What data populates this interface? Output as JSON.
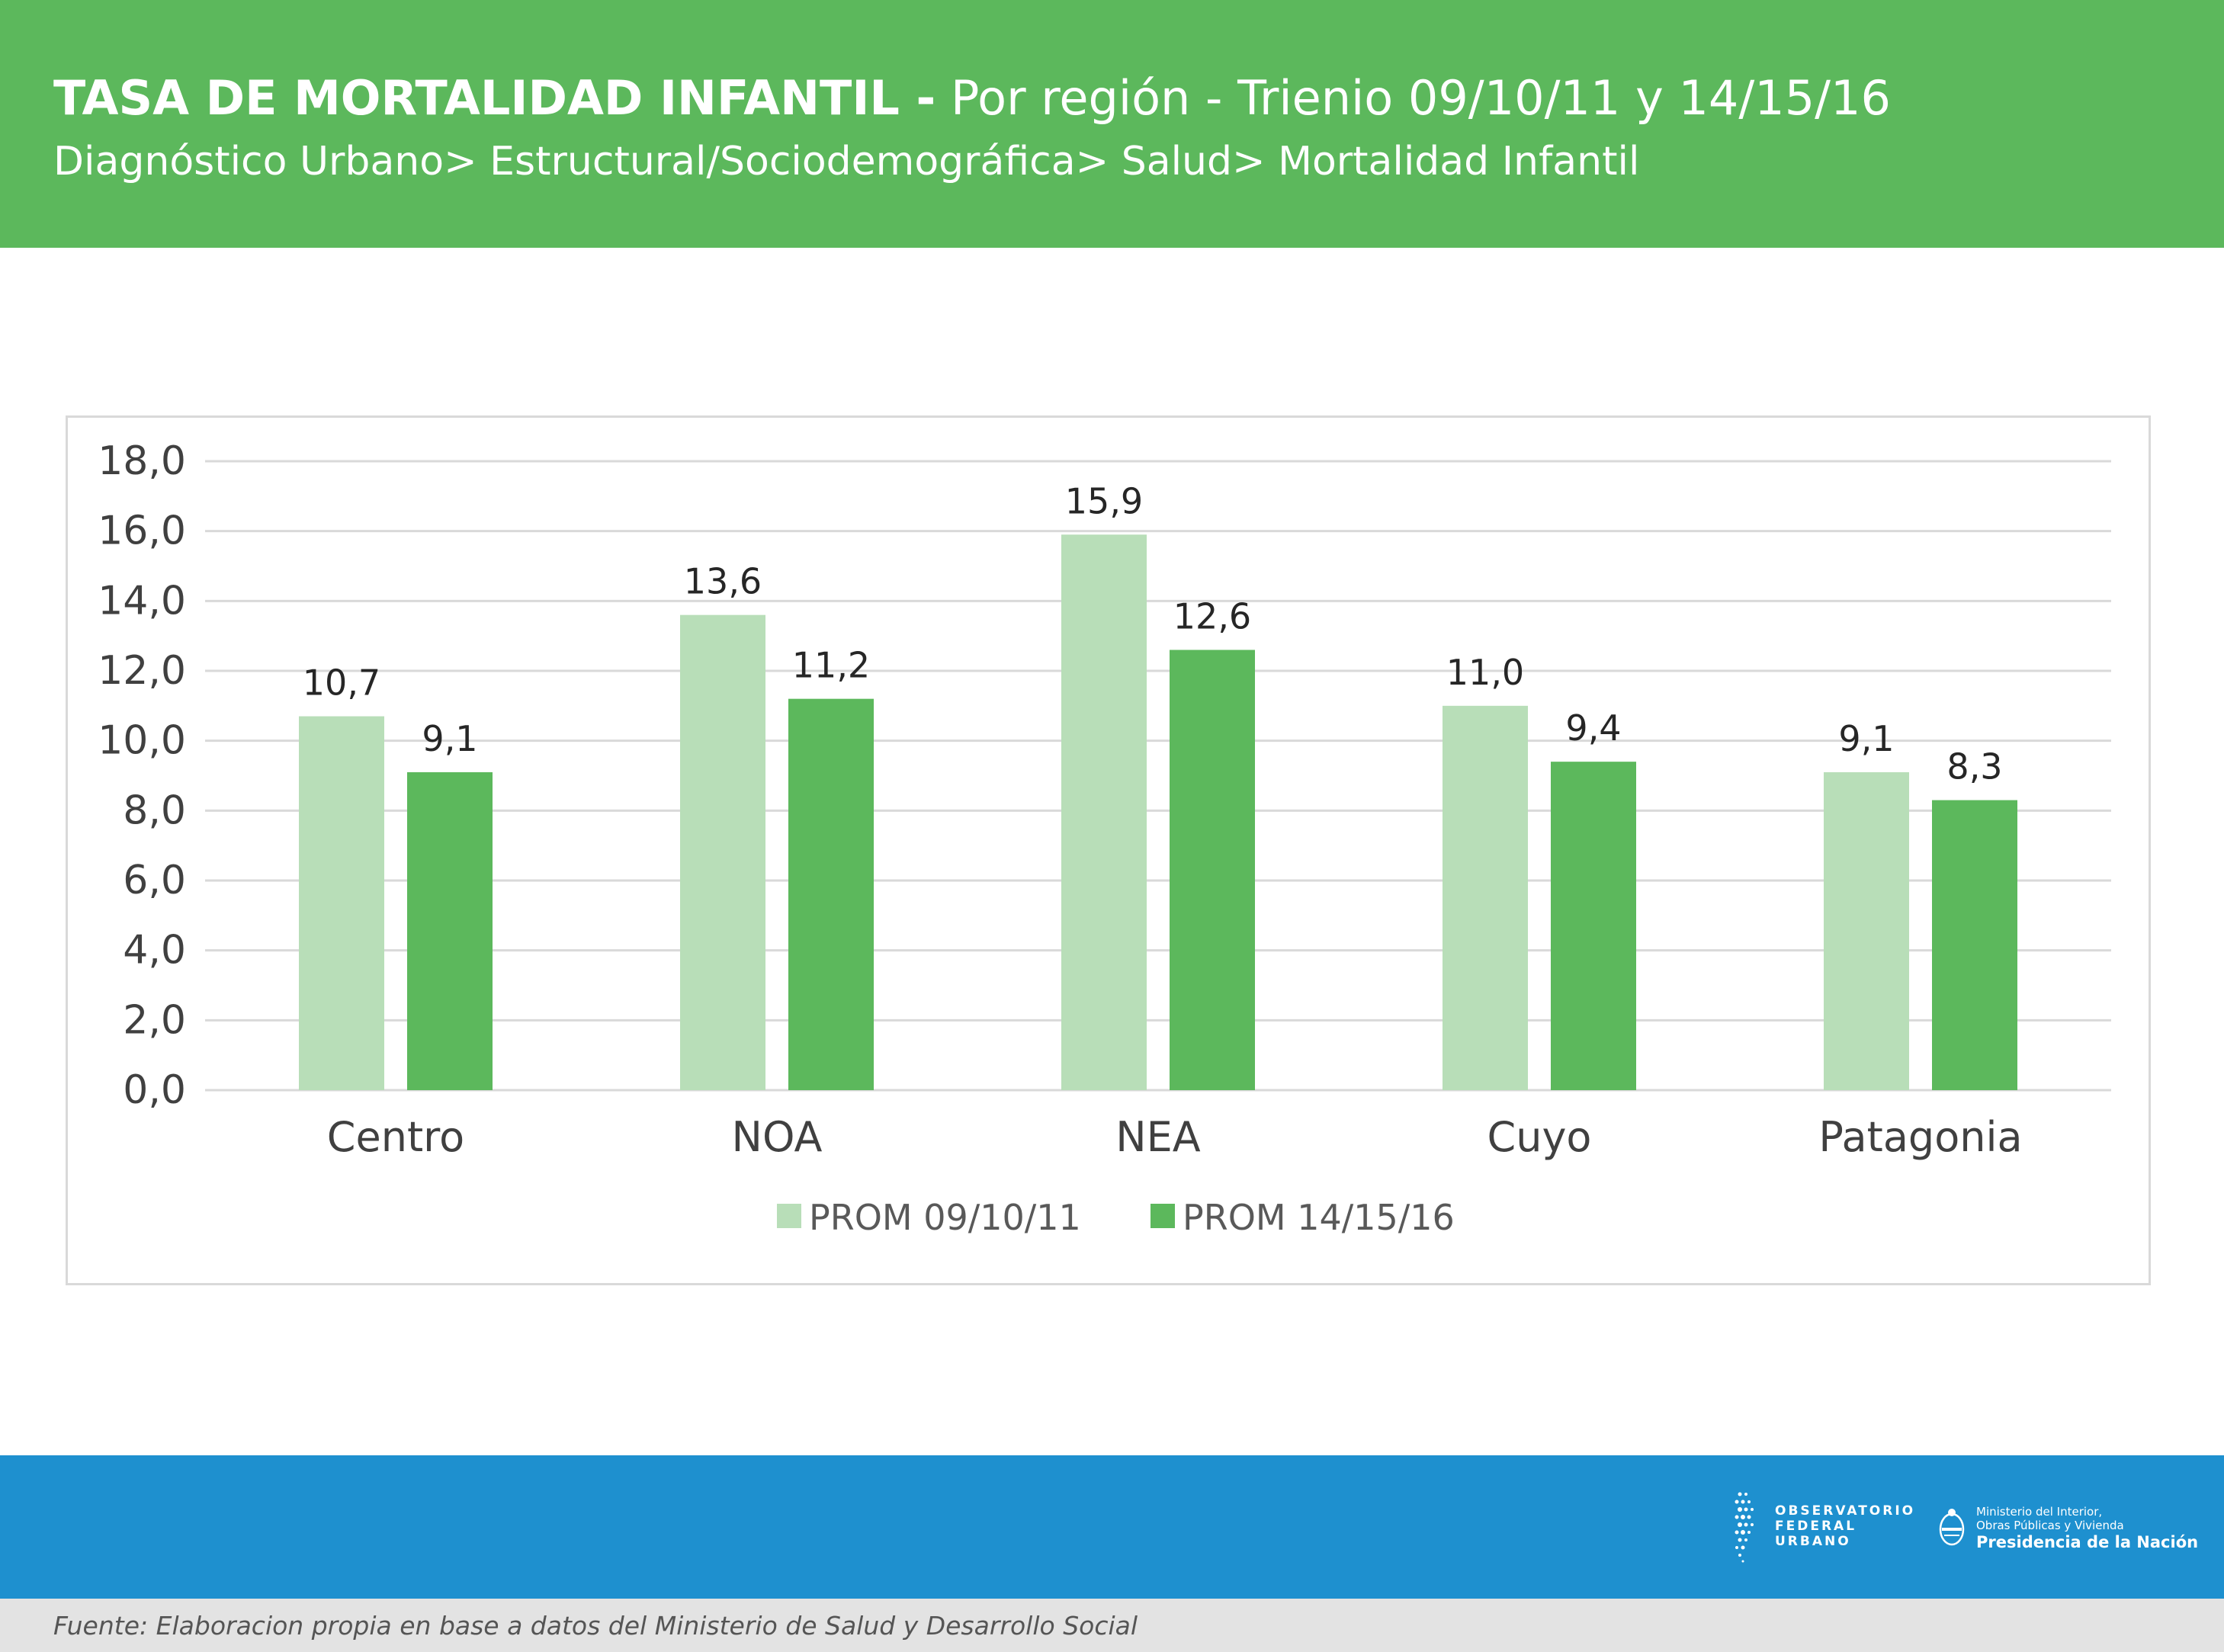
{
  "header": {
    "title_bold": "TASA DE MORTALIDAD INFANTIL -",
    "title_rest": "Por región - Trienio 09/10/11 y 14/15/16",
    "subtitle": "Diagnóstico Urbano> Estructural/Sociodemográfica> Salud> Mortalidad Infantil"
  },
  "footer": {
    "source": "Fuente: Elaboracion propia en base a datos del Ministerio de Salud y Desarrollo Social",
    "logo_observatorio": [
      "OBSERVATORIO",
      "FEDERAL",
      "URBANO"
    ],
    "logo_ministerio_line1": "Ministerio del Interior,",
    "logo_ministerio_line2": "Obras Públicas y Vivienda",
    "logo_presidencia": "Presidencia de la Nación"
  },
  "colors": {
    "header_green": "#5cb85c",
    "footer_blue": "#1e90cf",
    "series_light": "#b8deb8",
    "series_dark": "#5cb85c"
  },
  "chart_data": {
    "type": "bar",
    "categories": [
      "Centro",
      "NOA",
      "NEA",
      "Cuyo",
      "Patagonia"
    ],
    "series": [
      {
        "name": "PROM 09/10/11",
        "values": [
          10.7,
          13.6,
          15.9,
          11.0,
          9.1
        ],
        "labels": [
          "10,7",
          "13,6",
          "15,9",
          "11,0",
          "9,1"
        ],
        "color": "#b8deb8"
      },
      {
        "name": "PROM 14/15/16",
        "values": [
          9.1,
          11.2,
          12.6,
          9.4,
          8.3
        ],
        "labels": [
          "9,1",
          "11,2",
          "12,6",
          "9,4",
          "8,3"
        ],
        "color": "#5cb85c"
      }
    ],
    "ylim": [
      0,
      18
    ],
    "yticks": [
      0,
      2,
      4,
      6,
      8,
      10,
      12,
      14,
      16,
      18
    ],
    "ytick_labels": [
      "0,0",
      "2,0",
      "4,0",
      "6,0",
      "8,0",
      "10,0",
      "12,0",
      "14,0",
      "16,0",
      "18,0"
    ],
    "grid": true,
    "legend_position": "bottom"
  }
}
